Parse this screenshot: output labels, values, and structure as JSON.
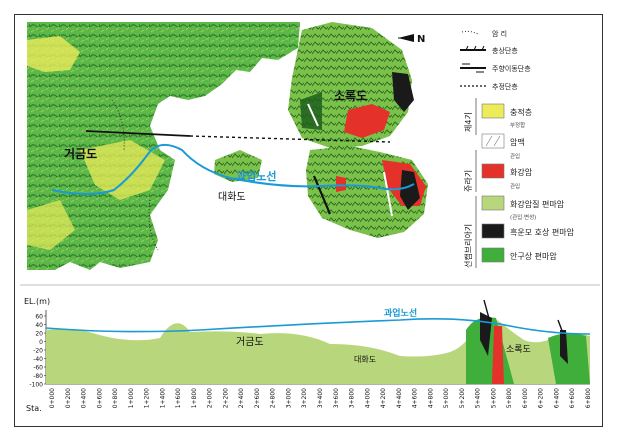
{
  "map": {
    "north_label": "N",
    "place_labels": {
      "geogeumdo": "거금도",
      "sorokdo": "소록도",
      "daehwado": "대화도",
      "route": "과업노선"
    }
  },
  "legend": {
    "line_items": {
      "outcrop": "암 리",
      "thrust": "충상단층",
      "strike_slip": "주향이동단층",
      "inferred": "추정단층"
    },
    "periods": {
      "quaternary": "제4기",
      "jurassic": "쥬라기",
      "precambrian": "선캠브리아기"
    },
    "units": {
      "sediment": "충적층",
      "sediment_note": "부정합",
      "dyke": "암맥",
      "dyke_note": "관입",
      "granite": "화강암",
      "granite_note": "관입",
      "granitic_gneiss": "화강암질 편마암",
      "granitic_gneiss_note": "(관입·변성)",
      "biotite_gneiss": "흑운모 호상 편마암",
      "augen_gneiss": "안구상 편마암"
    },
    "colors": {
      "sediment": "#ecec5a",
      "dyke": "#ffffff",
      "granite": "#e4322a",
      "granitic_gneiss": "#b8d67c",
      "biotite_gneiss": "#1a1a1a",
      "augen_gneiss": "#3fae3a",
      "route": "#1a9ad6"
    }
  },
  "profile": {
    "ylabel": "EL.(m)",
    "xlabel": "Sta.",
    "y_ticks": [
      "60",
      "40",
      "20",
      "0",
      "-20",
      "-40",
      "-60",
      "-80",
      "-100"
    ],
    "stations": [
      "0+000",
      "0+200",
      "0+400",
      "0+600",
      "0+800",
      "1+000",
      "1+200",
      "1+400",
      "1+600",
      "1+800",
      "2+000",
      "2+200",
      "2+400",
      "2+600",
      "2+800",
      "3+000",
      "3+200",
      "3+400",
      "3+600",
      "3+800",
      "4+000",
      "4+200",
      "4+400",
      "4+600",
      "4+800",
      "5+000",
      "5+200",
      "5+400",
      "5+600",
      "5+800",
      "6+000",
      "6+200",
      "6+400",
      "6+600",
      "6+800"
    ],
    "labels": {
      "geogeumdo": "거금도",
      "daehwado": "대화도",
      "sorokdo": "소록도",
      "route": "과업노선"
    }
  }
}
